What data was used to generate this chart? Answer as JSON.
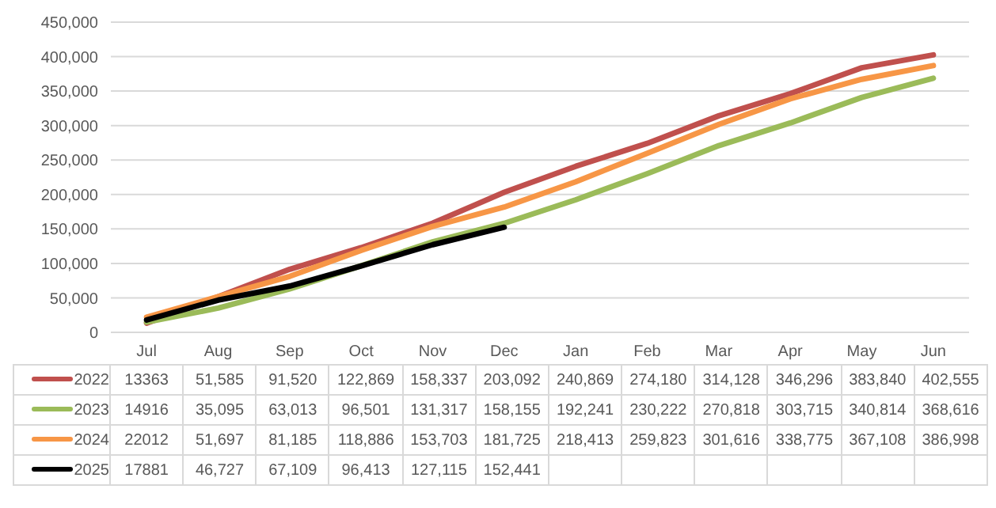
{
  "chart_data": {
    "type": "line",
    "categories": [
      "Jul",
      "Aug",
      "Sep",
      "Oct",
      "Nov",
      "Dec",
      "Jan",
      "Feb",
      "Mar",
      "Apr",
      "May",
      "Jun"
    ],
    "series": [
      {
        "name": "2022",
        "color": "#c0504d",
        "values": [
          13363,
          51585,
          91520,
          122869,
          158337,
          203092,
          240869,
          274180,
          314128,
          346296,
          383840,
          402555
        ],
        "value_labels": [
          "13363",
          "51,585",
          "91,520",
          "122,869",
          "158,337",
          "203,092",
          "240,869",
          "274,180",
          "314,128",
          "346,296",
          "383,840",
          "402,555"
        ]
      },
      {
        "name": "2023",
        "color": "#9bbb59",
        "values": [
          14916,
          35095,
          63013,
          96501,
          131317,
          158155,
          192241,
          230222,
          270818,
          303715,
          340814,
          368616
        ],
        "value_labels": [
          "14916",
          "35,095",
          "63,013",
          "96,501",
          "131,317",
          "158,155",
          "192,241",
          "230,222",
          "270,818",
          "303,715",
          "340,814",
          "368,616"
        ]
      },
      {
        "name": "2024",
        "color": "#f79646",
        "values": [
          22012,
          51697,
          81185,
          118886,
          153703,
          181725,
          218413,
          259823,
          301616,
          338775,
          367108,
          386998
        ],
        "value_labels": [
          "22012",
          "51,697",
          "81,185",
          "118,886",
          "153,703",
          "181,725",
          "218,413",
          "259,823",
          "301,616",
          "338,775",
          "367,108",
          "386,998"
        ]
      },
      {
        "name": "2025",
        "color": "#000000",
        "values": [
          17881,
          46727,
          67109,
          96413,
          127115,
          152441,
          null,
          null,
          null,
          null,
          null,
          null
        ],
        "value_labels": [
          "17881",
          "46,727",
          "67,109",
          "96,413",
          "127,115",
          "152,441",
          null,
          null,
          null,
          null,
          null,
          null
        ]
      }
    ],
    "ylim": [
      0,
      450000
    ],
    "yticks": [
      0,
      {
        "value": 50000,
        "label": "50,000"
      },
      {
        "value": 100000,
        "label": "100,000"
      },
      {
        "value": 150000,
        "label": "150,000"
      },
      {
        "value": 200000,
        "label": "200,000"
      },
      {
        "value": 250000,
        "label": "250,000"
      },
      {
        "value": 300000,
        "label": "300,000"
      },
      {
        "value": 350000,
        "label": "350,000"
      },
      {
        "value": 400000,
        "label": "400,000"
      },
      {
        "value": 450000,
        "label": "450,000"
      }
    ],
    "grid": "y",
    "legend": "bottom",
    "marker": "none",
    "line_style": "solid"
  }
}
